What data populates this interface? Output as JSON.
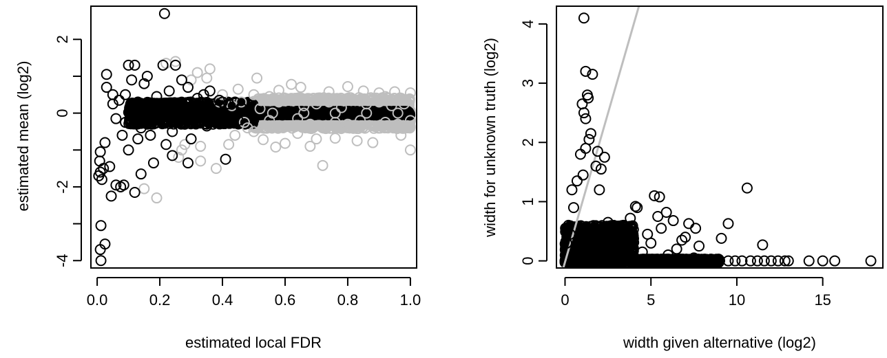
{
  "chart_data": [
    {
      "type": "scatter",
      "title": "",
      "xlabel": "estimated local FDR",
      "ylabel": "estimated mean (log2)",
      "xlim": [
        -0.02,
        1.02
      ],
      "ylim": [
        -4.2,
        2.9
      ],
      "xticks": [
        0.0,
        0.2,
        0.4,
        0.6,
        0.8,
        1.0
      ],
      "xtick_labels": [
        "0.0",
        "0.2",
        "0.4",
        "0.6",
        "0.8",
        "1.0"
      ],
      "yticks": [
        -4,
        -3,
        -2,
        -1,
        0,
        1,
        2
      ],
      "ytick_labels": [
        "-4",
        "",
        "-2",
        "",
        "0",
        "",
        "2"
      ],
      "grid": false,
      "legend": "none",
      "series": [
        {
          "color": "#bebebe",
          "points": [
            [
              0.52,
              0.12
            ],
            [
              0.55,
              -0.2
            ],
            [
              0.58,
              0.3
            ],
            [
              0.6,
              -0.35
            ],
            [
              0.62,
              0.4
            ],
            [
              0.64,
              -0.15
            ],
            [
              0.66,
              0.2
            ],
            [
              0.68,
              -0.3
            ],
            [
              0.7,
              0.25
            ],
            [
              0.72,
              -0.4
            ],
            [
              0.74,
              0.3
            ],
            [
              0.76,
              -0.25
            ],
            [
              0.78,
              0.15
            ],
            [
              0.8,
              -0.3
            ],
            [
              0.82,
              0.35
            ],
            [
              0.84,
              -0.2
            ],
            [
              0.86,
              0.25
            ],
            [
              0.88,
              -0.35
            ],
            [
              0.9,
              0.3
            ],
            [
              0.92,
              -0.25
            ],
            [
              0.94,
              0.2
            ],
            [
              0.96,
              -0.3
            ],
            [
              0.98,
              0.25
            ],
            [
              1.0,
              -0.2
            ],
            [
              0.51,
              0.95
            ],
            [
              0.53,
              -0.72
            ],
            [
              0.58,
              0.62
            ],
            [
              0.6,
              -0.82
            ],
            [
              0.65,
              0.7
            ],
            [
              0.7,
              -0.7
            ],
            [
              0.74,
              0.58
            ],
            [
              0.76,
              -0.68
            ],
            [
              0.85,
              0.6
            ],
            [
              0.88,
              -0.8
            ],
            [
              0.9,
              0.55
            ],
            [
              0.95,
              0.58
            ],
            [
              0.97,
              -0.6
            ],
            [
              1.0,
              -1.0
            ],
            [
              1.0,
              0.55
            ],
            [
              0.57,
              -0.92
            ],
            [
              0.62,
              0.78
            ],
            [
              0.68,
              -0.9
            ],
            [
              0.72,
              -1.42
            ],
            [
              0.8,
              0.72
            ],
            [
              0.83,
              -0.75
            ],
            [
              0.55,
              0.45
            ],
            [
              0.64,
              -0.55
            ],
            [
              0.92,
              0.45
            ],
            [
              0.4,
              0.5
            ],
            [
              0.44,
              -0.6
            ],
            [
              0.46,
              0.3
            ],
            [
              0.48,
              -0.4
            ],
            [
              0.38,
              -1.5
            ],
            [
              0.33,
              -1.3
            ],
            [
              0.27,
              -1.0
            ],
            [
              0.3,
              0.9
            ],
            [
              0.36,
              1.2
            ],
            [
              0.25,
              1.4
            ],
            [
              0.22,
              1.35
            ],
            [
              0.33,
              -0.9
            ],
            [
              0.45,
              0.65
            ],
            [
              0.42,
              -0.85
            ],
            [
              0.5,
              0.5
            ],
            [
              0.5,
              -0.5
            ],
            [
              0.15,
              -2.05
            ],
            [
              0.19,
              -2.3
            ],
            [
              0.28,
              -0.85
            ],
            [
              0.35,
              0.95
            ],
            [
              0.32,
              1.1
            ],
            [
              0.26,
              -1.2
            ],
            [
              0.43,
              0.2
            ],
            [
              0.47,
              -0.25
            ],
            [
              0.56,
              0.0
            ],
            [
              0.66,
              0.0
            ],
            [
              0.76,
              0.0
            ],
            [
              0.86,
              0.0
            ],
            [
              0.96,
              0.0
            ],
            [
              0.39,
              0.3
            ]
          ]
        },
        {
          "color": "#000000",
          "points": [
            [
              0.012,
              -3.05
            ],
            [
              0.01,
              -3.7
            ],
            [
              0.012,
              -4.0
            ],
            [
              0.025,
              -3.55
            ],
            [
              0.01,
              -1.6
            ],
            [
              0.015,
              -1.8
            ],
            [
              0.005,
              -1.7
            ],
            [
              0.02,
              -1.5
            ],
            [
              0.008,
              -1.3
            ],
            [
              0.01,
              -1.05
            ],
            [
              0.025,
              -0.8
            ],
            [
              0.03,
              0.7
            ],
            [
              0.03,
              1.05
            ],
            [
              0.04,
              -1.45
            ],
            [
              0.045,
              -2.25
            ],
            [
              0.05,
              0.25
            ],
            [
              0.05,
              0.5
            ],
            [
              0.06,
              -0.15
            ],
            [
              0.06,
              -1.95
            ],
            [
              0.075,
              -2.0
            ],
            [
              0.08,
              -0.6
            ],
            [
              0.085,
              -1.95
            ],
            [
              0.09,
              0.5
            ],
            [
              0.1,
              1.3
            ],
            [
              0.1,
              -1.0
            ],
            [
              0.11,
              0.9
            ],
            [
              0.12,
              1.3
            ],
            [
              0.12,
              -2.15
            ],
            [
              0.13,
              0.3
            ],
            [
              0.14,
              -0.4
            ],
            [
              0.14,
              -1.65
            ],
            [
              0.15,
              0.8
            ],
            [
              0.16,
              1.0
            ],
            [
              0.17,
              -0.6
            ],
            [
              0.18,
              -1.35
            ],
            [
              0.18,
              0.2
            ],
            [
              0.2,
              -0.2
            ],
            [
              0.21,
              1.3
            ],
            [
              0.215,
              2.7
            ],
            [
              0.22,
              -0.85
            ],
            [
              0.23,
              0.6
            ],
            [
              0.24,
              -0.5
            ],
            [
              0.25,
              1.3
            ],
            [
              0.26,
              0.25
            ],
            [
              0.27,
              0.9
            ],
            [
              0.28,
              -0.3
            ],
            [
              0.29,
              0.7
            ],
            [
              0.3,
              -0.7
            ],
            [
              0.32,
              0.4
            ],
            [
              0.34,
              0.5
            ],
            [
              0.35,
              -0.35
            ],
            [
              0.36,
              0.6
            ],
            [
              0.38,
              0.1
            ],
            [
              0.4,
              0.3
            ],
            [
              0.41,
              -1.25
            ],
            [
              0.42,
              0.25
            ],
            [
              0.43,
              -0.15
            ],
            [
              0.44,
              0.3
            ],
            [
              0.45,
              -0.2
            ],
            [
              0.46,
              0.15
            ],
            [
              0.48,
              0.05
            ],
            [
              0.29,
              -1.35
            ],
            [
              0.24,
              -1.15
            ],
            [
              0.19,
              0.45
            ],
            [
              0.09,
              -0.25
            ],
            [
              0.07,
              0.35
            ],
            [
              0.3,
              0.3
            ],
            [
              0.33,
              -0.25
            ],
            [
              0.37,
              -0.3
            ],
            [
              0.39,
              0.35
            ],
            [
              0.16,
              -0.3
            ],
            [
              0.13,
              -0.7
            ]
          ]
        }
      ],
      "bands": [
        {
          "color": "#bebebe",
          "x_from": 0.5,
          "x_to": 1.0,
          "y_from": -0.42,
          "y_to": 0.42
        },
        {
          "color": "#000000",
          "x_from": 0.1,
          "x_to": 0.5,
          "y_from": -0.3,
          "y_to": 0.3
        },
        {
          "color": "#000000",
          "x_from": 0.35,
          "x_to": 1.0,
          "y_from": -0.05,
          "y_to": 0.05
        }
      ]
    },
    {
      "type": "scatter",
      "title": "",
      "xlabel": "width given alternative (log2)",
      "ylabel": "width for unknown truth (log2)",
      "xlim": [
        -0.5,
        18.5
      ],
      "ylim": [
        -0.12,
        4.3
      ],
      "xticks": [
        0,
        5,
        10,
        15
      ],
      "xtick_labels": [
        "0",
        "5",
        "10",
        "15"
      ],
      "yticks": [
        0,
        1,
        2,
        3,
        4
      ],
      "ytick_labels": [
        "0",
        "1",
        "2",
        "3",
        "4"
      ],
      "grid": false,
      "legend": "none",
      "reference_line": {
        "color": "#bebebe",
        "from": [
          -0.1,
          -0.12
        ],
        "to": [
          4.3,
          4.3
        ]
      },
      "series": [
        {
          "color": "#000000",
          "points": [
            [
              1.1,
              4.1
            ],
            [
              1.2,
              3.2
            ],
            [
              1.6,
              3.15
            ],
            [
              1.3,
              2.8
            ],
            [
              1.35,
              2.75
            ],
            [
              1.0,
              2.65
            ],
            [
              1.1,
              2.5
            ],
            [
              1.2,
              2.4
            ],
            [
              1.5,
              2.15
            ],
            [
              1.4,
              2.05
            ],
            [
              1.9,
              1.85
            ],
            [
              1.2,
              1.9
            ],
            [
              0.9,
              1.8
            ],
            [
              2.3,
              1.75
            ],
            [
              1.8,
              1.6
            ],
            [
              2.1,
              1.55
            ],
            [
              1.05,
              1.45
            ],
            [
              0.7,
              1.35
            ],
            [
              2.0,
              1.2
            ],
            [
              0.4,
              1.2
            ],
            [
              5.2,
              1.1
            ],
            [
              5.5,
              1.08
            ],
            [
              10.6,
              1.23
            ],
            [
              4.2,
              0.9
            ],
            [
              4.1,
              0.92
            ],
            [
              5.9,
              0.82
            ],
            [
              5.4,
              0.75
            ],
            [
              6.3,
              0.68
            ],
            [
              7.2,
              0.63
            ],
            [
              7.6,
              0.55
            ],
            [
              9.5,
              0.63
            ],
            [
              9.1,
              0.38
            ],
            [
              11.5,
              0.27
            ],
            [
              7.0,
              0.4
            ],
            [
              7.8,
              0.25
            ],
            [
              6.5,
              0.2
            ],
            [
              5.0,
              0.3
            ],
            [
              3.8,
              0.72
            ],
            [
              3.4,
              0.6
            ],
            [
              3.0,
              0.5
            ],
            [
              2.5,
              0.65
            ],
            [
              0.5,
              0.9
            ],
            [
              0.2,
              0.6
            ],
            [
              0.1,
              0.3
            ],
            [
              0.3,
              0.45
            ],
            [
              14.2,
              0.0
            ],
            [
              15.0,
              0.0
            ],
            [
              15.7,
              0.0
            ],
            [
              17.8,
              0.0
            ],
            [
              13.0,
              0.0
            ],
            [
              12.8,
              0.0
            ],
            [
              12.4,
              0.0
            ],
            [
              12.0,
              0.0
            ],
            [
              11.6,
              0.0
            ],
            [
              11.2,
              0.0
            ],
            [
              10.8,
              0.0
            ],
            [
              10.3,
              0.0
            ],
            [
              9.9,
              0.0
            ],
            [
              9.5,
              0.0
            ],
            [
              9.0,
              0.0
            ],
            [
              3.5,
              0.1
            ],
            [
              3.0,
              0.2
            ],
            [
              2.8,
              0.35
            ],
            [
              2.0,
              0.4
            ],
            [
              1.5,
              0.5
            ],
            [
              4.5,
              0.15
            ],
            [
              6.0,
              0.1
            ],
            [
              7.5,
              0.05
            ],
            [
              5.6,
              0.55
            ],
            [
              6.8,
              0.35
            ],
            [
              4.8,
              0.45
            ]
          ]
        }
      ],
      "bands": [
        {
          "color": "#000000",
          "x_from": 0.0,
          "x_to": 4.0,
          "y_from": 0.0,
          "y_to": 0.6
        },
        {
          "color": "#000000",
          "x_from": 0.0,
          "x_to": 9.0,
          "y_from": -0.03,
          "y_to": 0.03
        }
      ]
    }
  ]
}
